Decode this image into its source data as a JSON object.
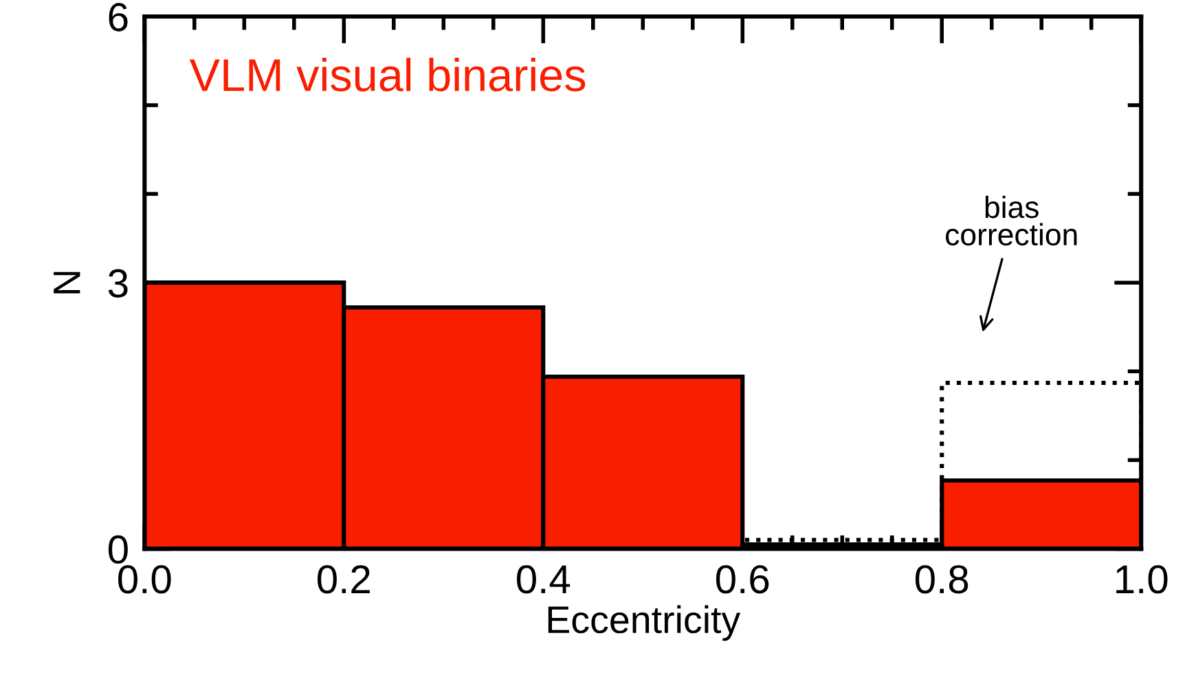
{
  "chart_data": {
    "type": "histogram",
    "title": "VLM visual binaries",
    "xlabel": "Eccentricity",
    "ylabel": "N",
    "series": [
      {
        "color": "#fa1e00",
        "values": [
          3.0,
          2.72,
          1.94,
          0.05,
          0.77
        ]
      },
      {
        "line_style": "dotted",
        "color": "#000000",
        "values": [
          null,
          null,
          null,
          0.1,
          1.87
        ]
      }
    ],
    "bins": [
      0.0,
      0.2,
      0.4,
      0.6,
      0.8,
      1.0
    ],
    "annotations": [
      "bias\ncorrection"
    ],
    "xlim": [
      0.0,
      1.0
    ],
    "xticks": [
      {
        "value": 0.0,
        "label": "0.0"
      },
      {
        "value": 0.2,
        "label": "0.2"
      },
      {
        "value": 0.4,
        "label": "0.4"
      },
      {
        "value": 0.6,
        "label": "0.6"
      },
      {
        "value": 0.8,
        "label": "0.8"
      },
      {
        "value": 1.0,
        "label": "1.0"
      }
    ],
    "ylim": [
      0,
      6
    ],
    "yticks": [
      0,
      3,
      6
    ],
    "grid": false,
    "legend": false
  }
}
